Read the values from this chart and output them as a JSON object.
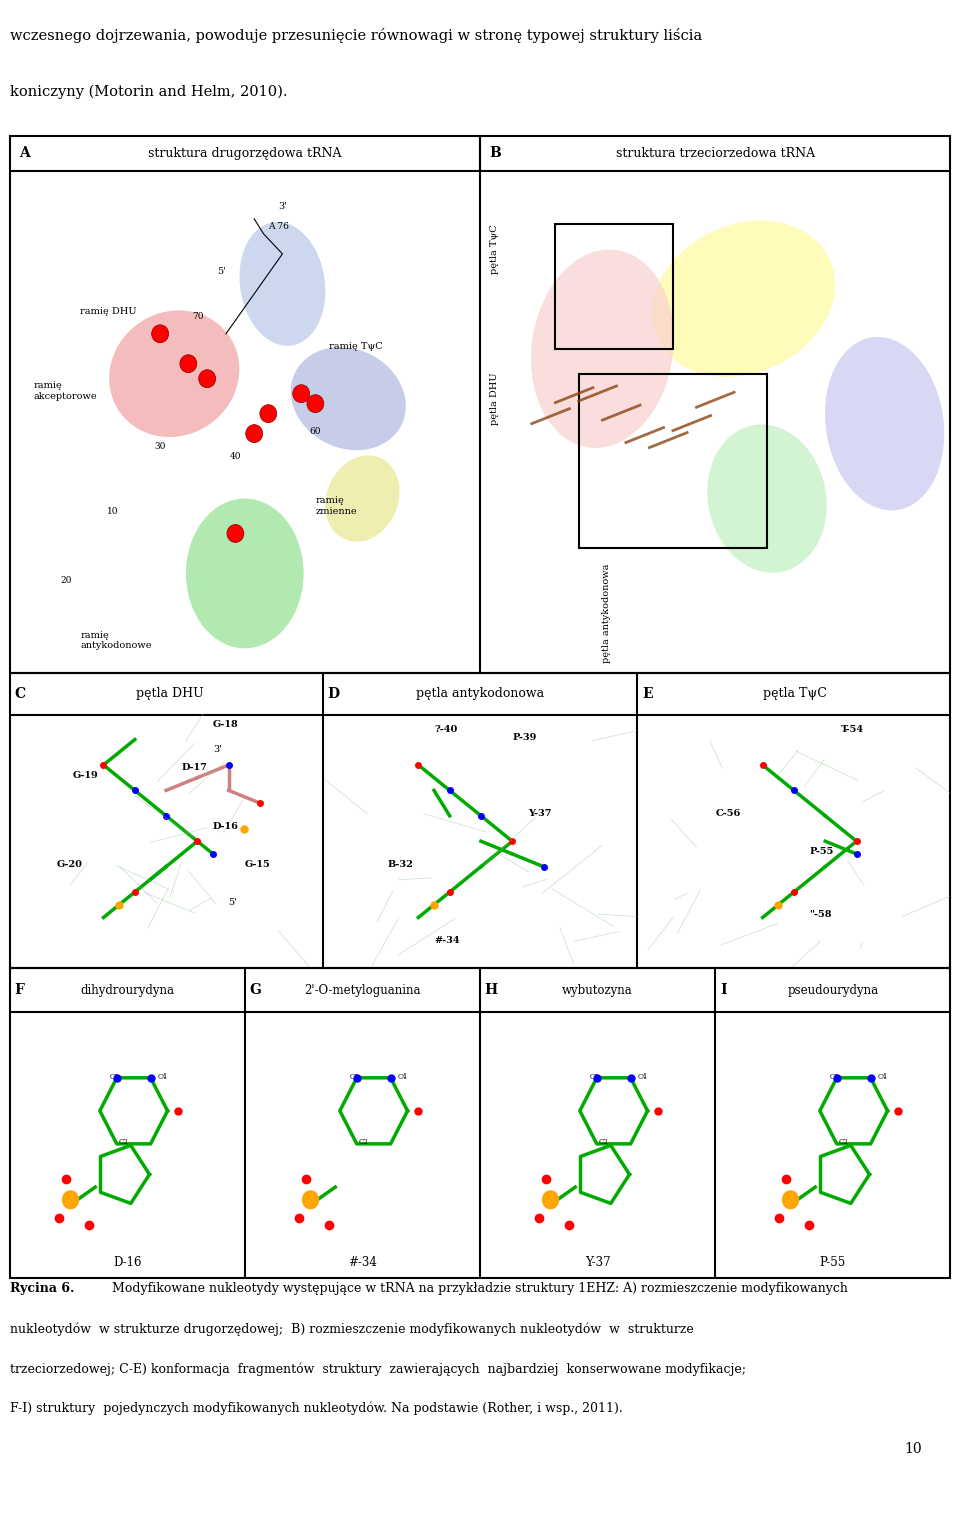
{
  "title_top_lines": [
    "wczesnego dojrzewania, powoduje przesunięcie równowagi w stronę typowej struktury liścia",
    "koniczyny (Motorin and Helm, 2010)."
  ],
  "panel_A_title": "struktura drugorzędowa tRNA",
  "panel_B_title": "struktura trzeciorzedowa tRNA",
  "panel_C_title": "pętla DHU",
  "panel_D_title": "pętla antykodonowa",
  "panel_E_title": "pętla TψC",
  "panel_F_title": "dihydrourydyna",
  "panel_G_title": "2'-O-metyloguanina",
  "panel_H_title": "wybutozyna",
  "panel_I_title": "pseudourydyna",
  "panel_F_label": "F",
  "panel_G_label": "G",
  "panel_H_label": "H",
  "panel_I_label": "I",
  "panel_A_label": "A",
  "panel_B_label": "B",
  "panel_C_label": "C",
  "panel_D_label": "D",
  "panel_E_label": "E",
  "label_D16": "D-16",
  "label_34": "#-34",
  "label_Y37": "Y-37",
  "label_P55": "P-55",
  "caption_bold": "Rycina 6.",
  "caption_text": " Modyfikowane nukleotydy występujące w tRNA na przykładzie struktury 1EHZ: A) rozmieszczenie modyfikowanych nukleotydów  w strukturze drugorzędowej;  B) rozmieszczenie modyfikowanych nukleotydów  w  strukturze  trzeciorzedowej; C-E) konformacja  fragmentów  struktury  zawierających  najbardziej  konserwowane modyfikacje;  F-I) struktury  pojedynczych modyfikowanych nukleotydów. Na podstawie (Rother, i wsp., 2011).",
  "page_number": "10",
  "bg_color": "#ffffff",
  "border_color": "#000000",
  "text_color": "#000000",
  "header_fontsize": 9,
  "label_fontsize": 10,
  "caption_fontsize": 9,
  "subfig_label_color_AB": "#c8c8c8",
  "subfig_C_bg": "#ffffff",
  "subfig_D_bg": "#ffffff",
  "subfig_E_bg": "#ffffff"
}
